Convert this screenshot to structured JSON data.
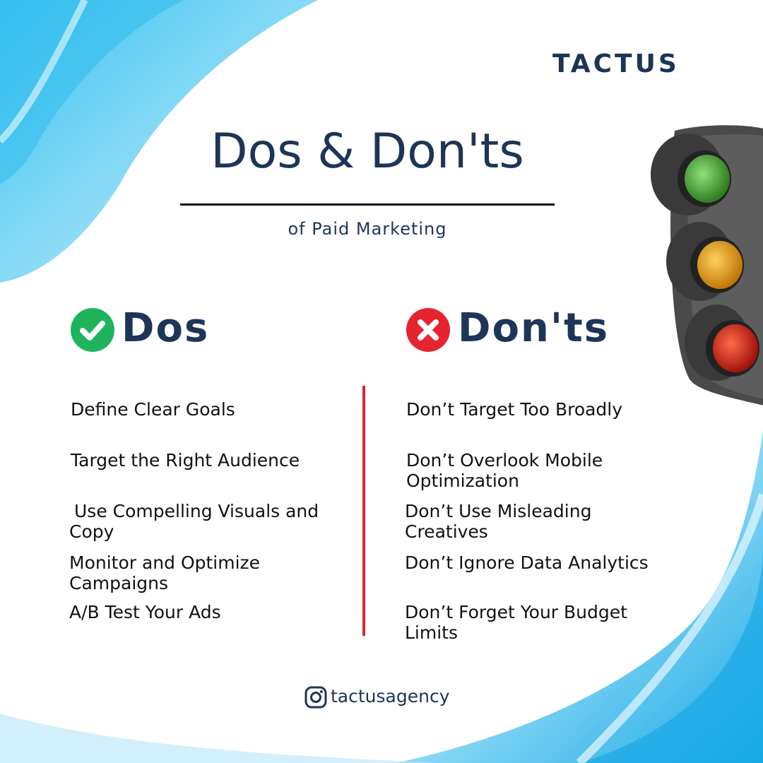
{
  "brand": "TACTUS",
  "title": "Dos & Don'ts",
  "subtitle": "of Paid Marketing",
  "dos": {
    "heading": "Dos",
    "icon": "check-circle-icon",
    "icon_color": "#1fb35c",
    "items": [
      "Define Clear Goals",
      "Target the Right Audience",
      "Use Compelling Visuals and Copy",
      "Monitor and Optimize Campaigns",
      "A/B Test Your Ads"
    ]
  },
  "donts": {
    "heading": "Don'ts",
    "icon": "x-circle-icon",
    "icon_color": "#e5242f",
    "items": [
      "Don’t Target Too Broadly",
      "Don’t Overlook Mobile Optimization",
      "Don’t Use Misleading Creatives",
      "Don’t Ignore Data Analytics",
      "Don’t Forget Your Budget Limits"
    ]
  },
  "social": {
    "icon": "instagram-icon",
    "handle": "tactusagency"
  },
  "colors": {
    "navy": "#1d3557",
    "divider": "#d9272e",
    "sky_blue": "#29b6ea"
  },
  "image": "traffic-light"
}
